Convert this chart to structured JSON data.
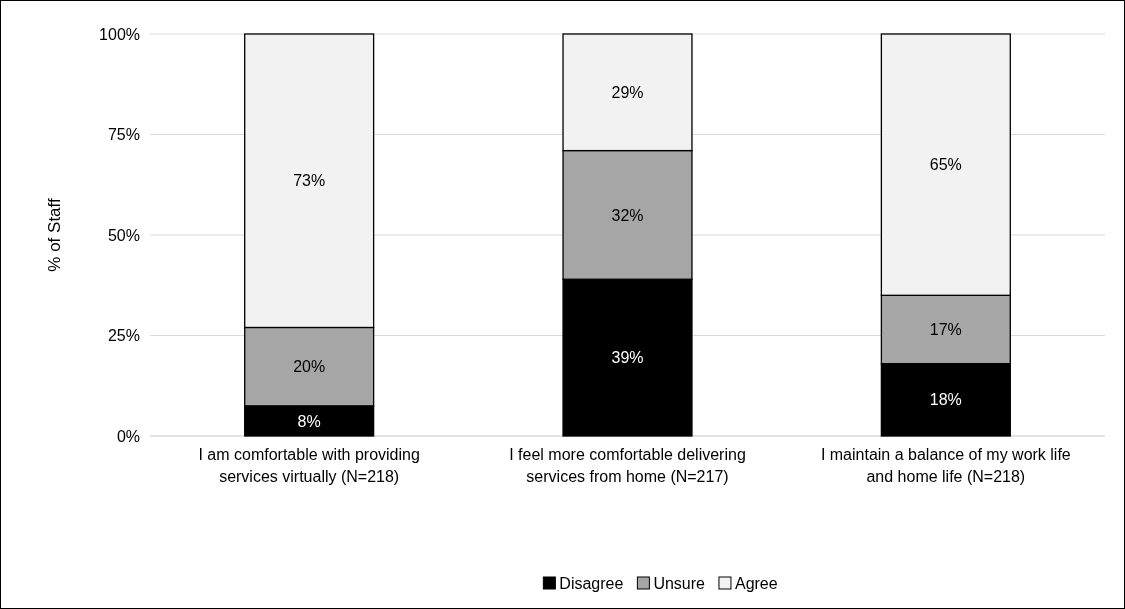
{
  "chart_data": {
    "type": "bar",
    "stacked": true,
    "ylabel": "% of Staff",
    "categories": [
      "I am comfortable with providing services virtually (N=218)",
      "I feel more comfortable delivering services from home (N=217)",
      "I maintain a balance of my work life and home life (N=218)"
    ],
    "series": [
      {
        "name": "Disagree",
        "color": "#000000",
        "values": [
          7.5,
          39,
          18
        ],
        "value_labels": [
          "8%",
          "39%",
          "18%"
        ]
      },
      {
        "name": "Unsure",
        "color": "#a6a6a6",
        "values": [
          19.5,
          32,
          17
        ],
        "value_labels": [
          "20%",
          "32%",
          "17%"
        ]
      },
      {
        "name": "Agree",
        "color": "#f2f2f2",
        "values": [
          73,
          29,
          65
        ],
        "value_labels": [
          "73%",
          "29%",
          "65%"
        ]
      }
    ],
    "ylim": [
      0,
      100
    ],
    "yticks": [
      {
        "value": 0,
        "label": "0%"
      },
      {
        "value": 25,
        "label": "25%"
      },
      {
        "value": 50,
        "label": "50%"
      },
      {
        "value": 75,
        "label": "75%"
      },
      {
        "value": 100,
        "label": "100%"
      }
    ],
    "grid": "y",
    "legend": "bottom"
  }
}
